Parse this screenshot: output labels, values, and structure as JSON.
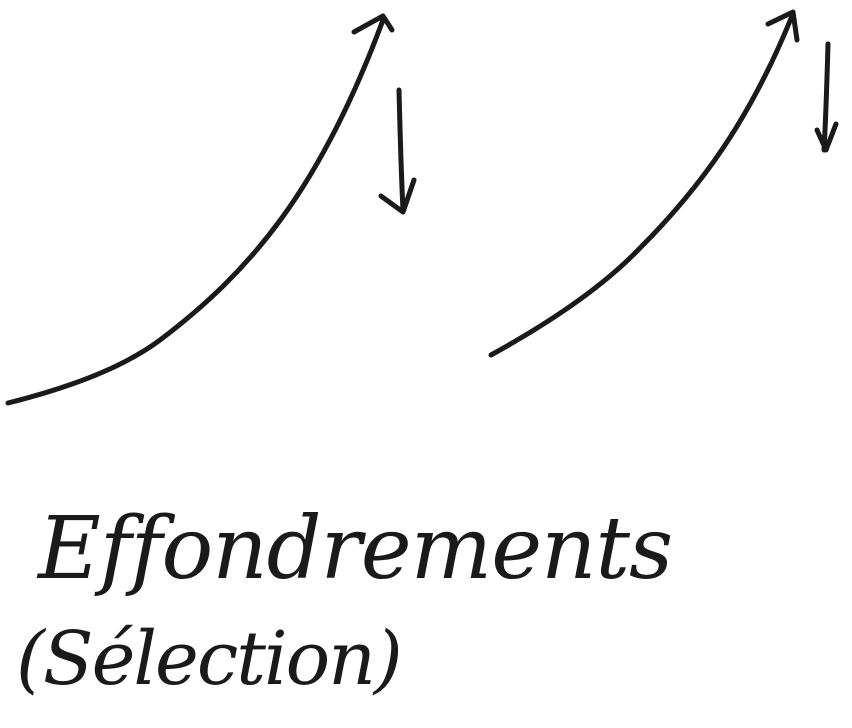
{
  "ink_color": "#1a1a1a",
  "background_color": "#ffffff",
  "figures": [
    {
      "name": "sketch-left",
      "curve_icon": "rising-curve-arrow-icon",
      "drop_icon": "down-arrow-icon"
    },
    {
      "name": "sketch-right",
      "curve_icon": "rising-curve-arrow-icon",
      "drop_icon": "down-arrow-icon"
    }
  ],
  "caption": {
    "line1": "Effondrements",
    "line2": "(Sélection)"
  }
}
